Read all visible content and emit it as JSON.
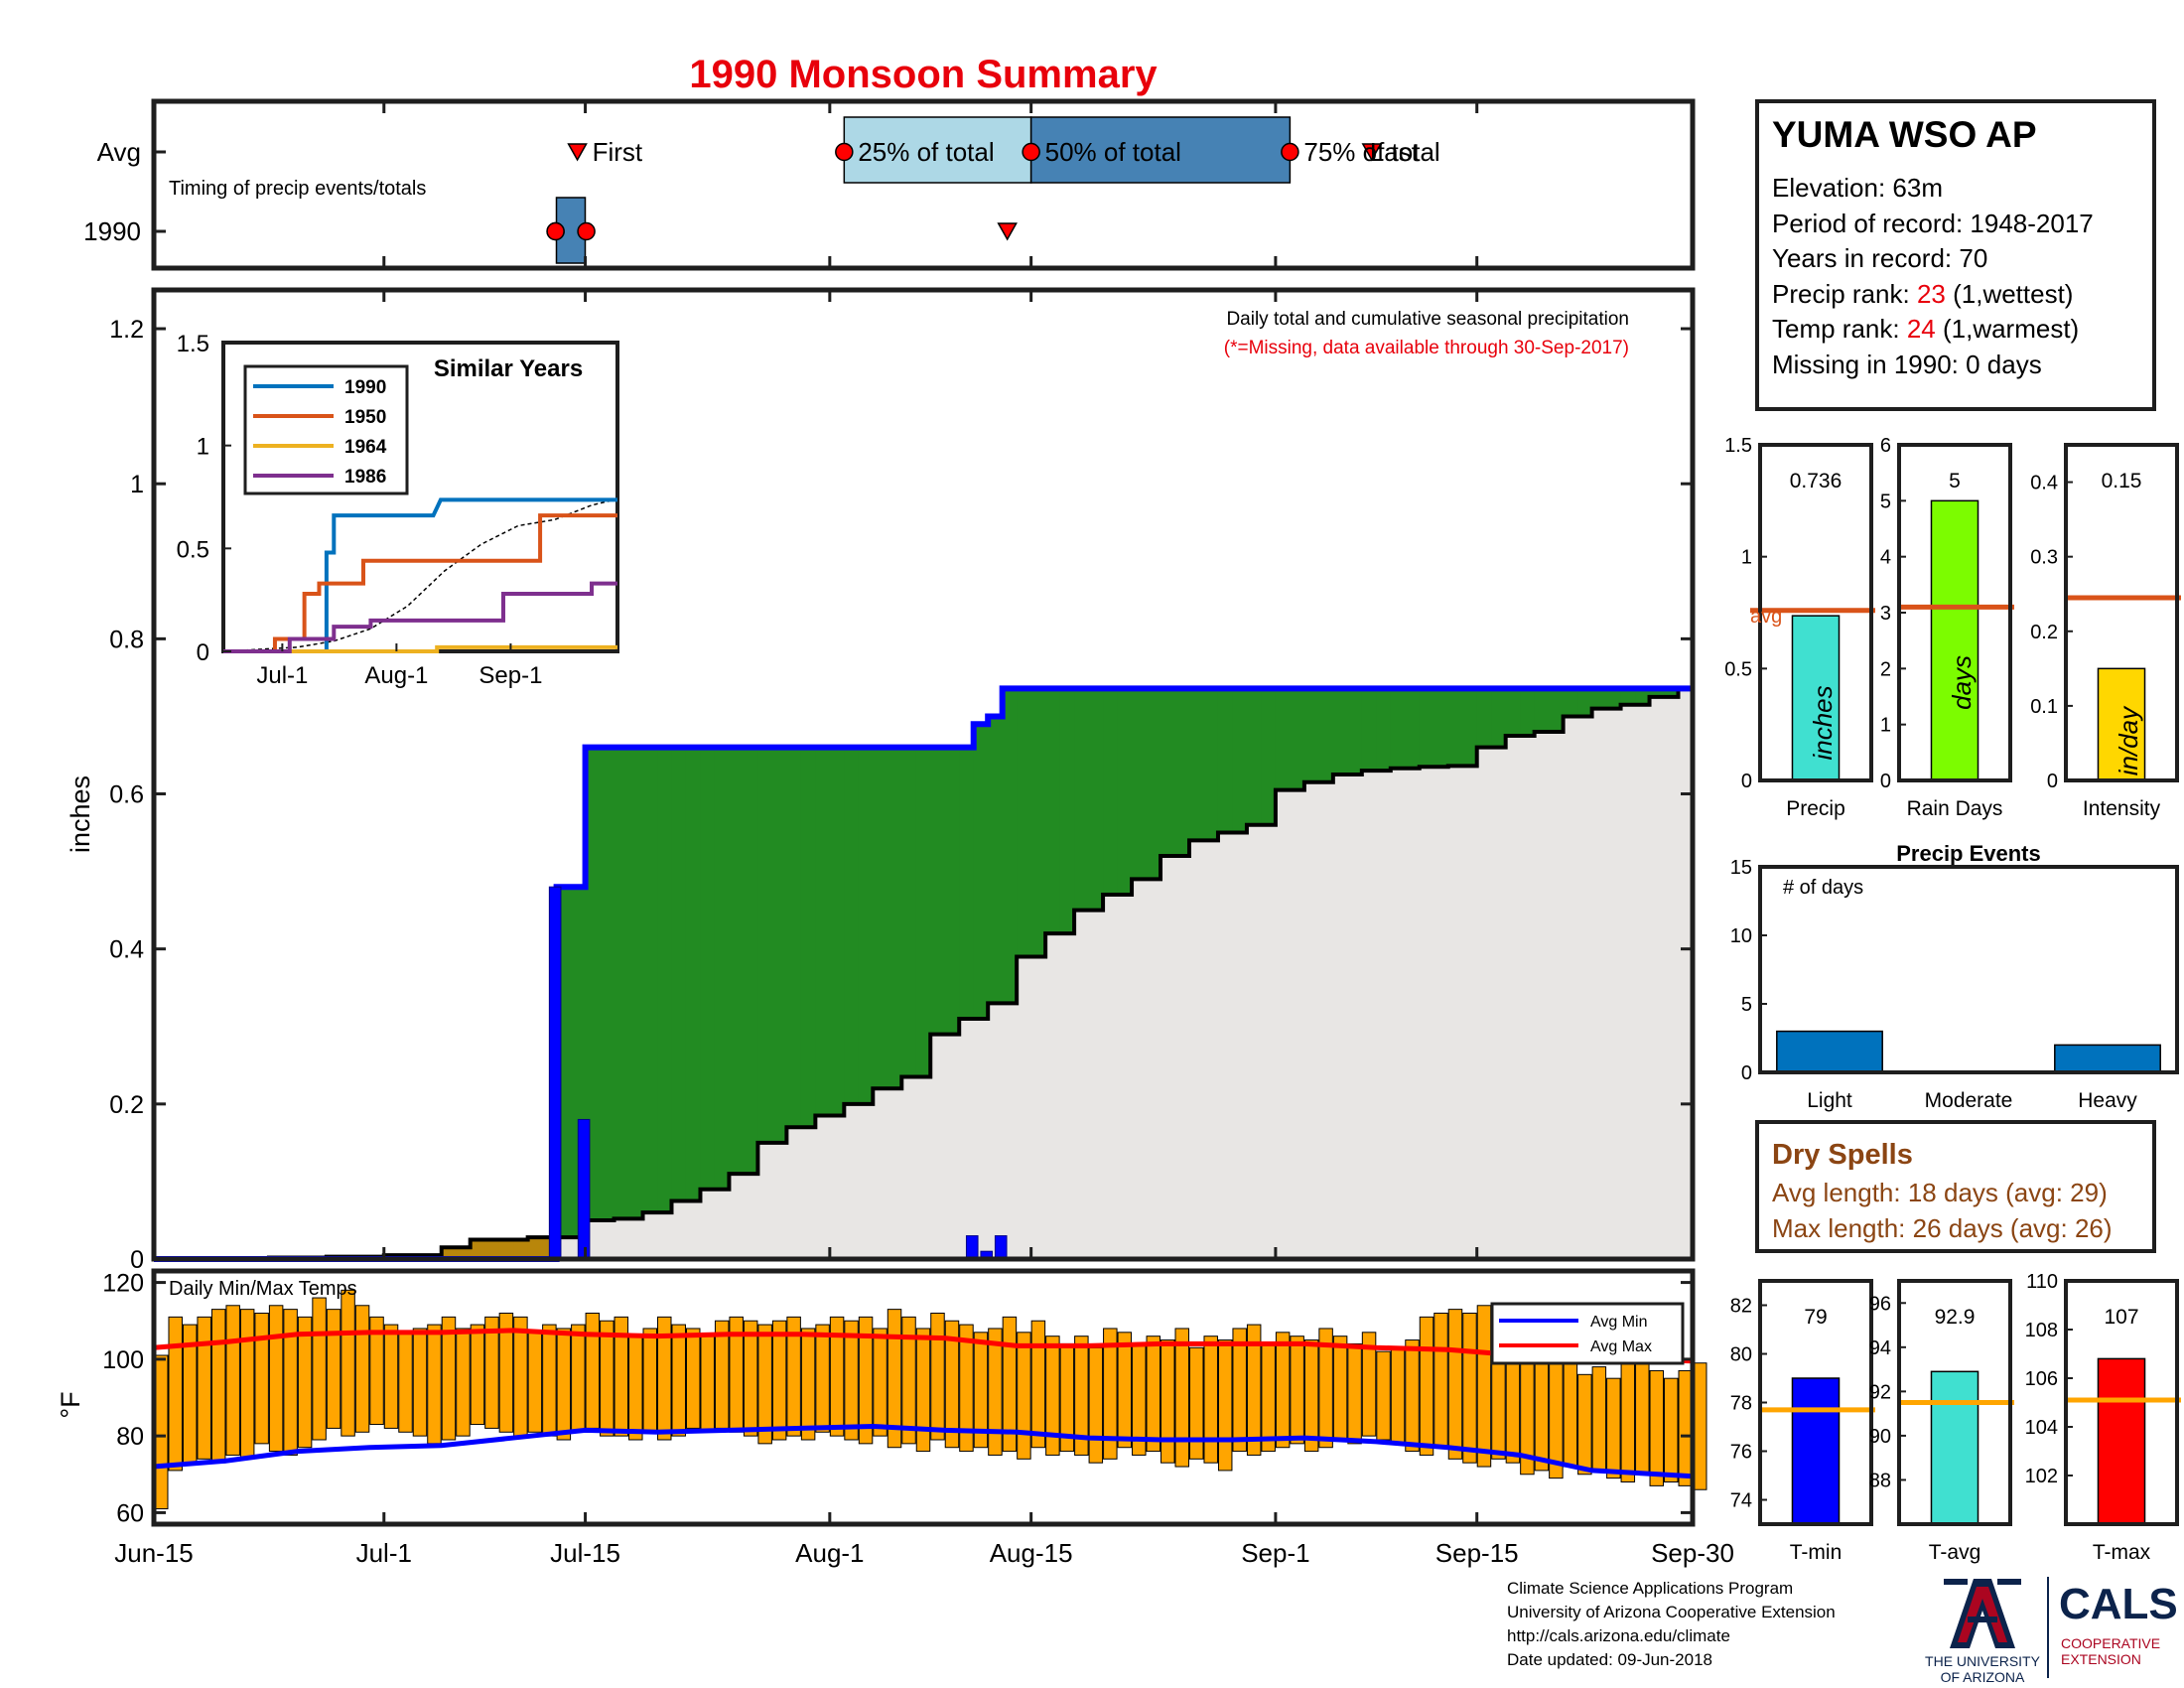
{
  "title": "1990 Monsoon Summary",
  "timing": {
    "caption": "Timing of precip events/totals",
    "row_labels": [
      "Avg",
      "1990"
    ],
    "avg_labels": [
      "First",
      "25% of total",
      "50% of total",
      "75% of total",
      "Last"
    ],
    "avg_days": {
      "first": 30,
      "p25": 48,
      "p50": 61,
      "p75": 79,
      "last": 84
    },
    "year_days": {
      "first": 28,
      "p25": 28,
      "p50": 28,
      "p75": 30,
      "last": 59
    }
  },
  "station": {
    "name": "YUMA WSO AP",
    "elevation": "Elevation: 63m",
    "period": "Period of record: 1948-2017",
    "years": "Years in record: 70",
    "precip_rank_prefix": "Precip rank: ",
    "precip_rank": "23",
    "precip_rank_suffix": " (1,wettest)",
    "temp_rank_prefix": "Temp rank: ",
    "temp_rank": "24",
    "temp_rank_suffix": " (1,warmest)",
    "missing": "Missing in 1990: 0 days"
  },
  "colors": {
    "title_red": "#e8000b",
    "daily_bar": "#0000ff",
    "cum_line": "#0000ff",
    "surplus_green": "#228b22",
    "deficit_brown": "#b8860b",
    "avg_gray": "#e8e6e4",
    "temp_bar": "#ffa500",
    "avg_min": "#0000ff",
    "avg_max": "#ff0000",
    "precip_bar": "#40e0d0",
    "raindays_bar": "#7cfc00",
    "intensity_bar": "#ffd700",
    "avg_line": "#d95319",
    "events_bar": "#0072bd",
    "tmin_bar": "#0000ff",
    "tavg_bar": "#40e0d0",
    "tmax_bar": "#ff0000",
    "temp_avg_line": "#ffa500",
    "dry_spell_text": "#8b4513",
    "ua_red": "#ab0520",
    "ua_blue": "#0c234b"
  },
  "chart_data": [
    {
      "type": "bar",
      "name": "Daily total and cumulative seasonal precipitation",
      "title": "Daily total and cumulative seasonal precipitation",
      "subtitle": "(*=Missing, data available through 30-Sep-2017)",
      "ylabel": "inches",
      "ylim": [
        0,
        1.25
      ],
      "yticks": [
        0,
        0.2,
        0.4,
        0.6,
        0.8,
        1,
        1.2
      ],
      "ytick_labels": [
        "0",
        "0.2",
        "0.4",
        "0.6",
        "0.8",
        "1",
        "1.2"
      ],
      "xtick_labels": [
        "Jun-15",
        "Jul-1",
        "Jul-15",
        "Aug-1",
        "Aug-15",
        "Sep-1",
        "Sep-15",
        "Sep-30"
      ],
      "xtick_days": [
        0,
        16,
        30,
        47,
        61,
        78,
        92,
        107
      ],
      "daily": [
        {
          "day": 28,
          "value": 0.48
        },
        {
          "day": 30,
          "value": 0.18
        },
        {
          "day": 57,
          "value": 0.03
        },
        {
          "day": 58,
          "value": 0.01
        },
        {
          "day": 59,
          "value": 0.03
        }
      ],
      "cumulative": [
        {
          "day": 0,
          "value": 0
        },
        {
          "day": 28,
          "value": 0.48
        },
        {
          "day": 30,
          "value": 0.66
        },
        {
          "day": 57,
          "value": 0.69
        },
        {
          "day": 58,
          "value": 0.7
        },
        {
          "day": 59,
          "value": 0.736
        },
        {
          "day": 107,
          "value": 0.736
        }
      ],
      "average_cumulative": [
        {
          "day": 0,
          "value": 0
        },
        {
          "day": 4,
          "value": 0.001
        },
        {
          "day": 8,
          "value": 0.002
        },
        {
          "day": 12,
          "value": 0.003
        },
        {
          "day": 16,
          "value": 0.005
        },
        {
          "day": 20,
          "value": 0.015
        },
        {
          "day": 22,
          "value": 0.025
        },
        {
          "day": 26,
          "value": 0.028
        },
        {
          "day": 30,
          "value": 0.05
        },
        {
          "day": 32,
          "value": 0.052
        },
        {
          "day": 34,
          "value": 0.06
        },
        {
          "day": 36,
          "value": 0.075
        },
        {
          "day": 38,
          "value": 0.09
        },
        {
          "day": 40,
          "value": 0.11
        },
        {
          "day": 42,
          "value": 0.15
        },
        {
          "day": 44,
          "value": 0.17
        },
        {
          "day": 46,
          "value": 0.185
        },
        {
          "day": 48,
          "value": 0.2
        },
        {
          "day": 50,
          "value": 0.22
        },
        {
          "day": 52,
          "value": 0.235
        },
        {
          "day": 54,
          "value": 0.29
        },
        {
          "day": 56,
          "value": 0.31
        },
        {
          "day": 58,
          "value": 0.33
        },
        {
          "day": 60,
          "value": 0.39
        },
        {
          "day": 62,
          "value": 0.42
        },
        {
          "day": 64,
          "value": 0.45
        },
        {
          "day": 66,
          "value": 0.47
        },
        {
          "day": 68,
          "value": 0.49
        },
        {
          "day": 70,
          "value": 0.52
        },
        {
          "day": 72,
          "value": 0.54
        },
        {
          "day": 74,
          "value": 0.55
        },
        {
          "day": 76,
          "value": 0.56
        },
        {
          "day": 78,
          "value": 0.605
        },
        {
          "day": 80,
          "value": 0.615
        },
        {
          "day": 82,
          "value": 0.625
        },
        {
          "day": 84,
          "value": 0.63
        },
        {
          "day": 86,
          "value": 0.633
        },
        {
          "day": 88,
          "value": 0.635
        },
        {
          "day": 90,
          "value": 0.636
        },
        {
          "day": 92,
          "value": 0.66
        },
        {
          "day": 94,
          "value": 0.675
        },
        {
          "day": 96,
          "value": 0.68
        },
        {
          "day": 98,
          "value": 0.7
        },
        {
          "day": 100,
          "value": 0.71
        },
        {
          "day": 102,
          "value": 0.715
        },
        {
          "day": 104,
          "value": 0.725
        },
        {
          "day": 106,
          "value": 0.735
        },
        {
          "day": 107,
          "value": 0.74
        }
      ]
    },
    {
      "type": "line",
      "name": "Similar Years",
      "title": "Similar Years",
      "ylim": [
        0,
        1.5
      ],
      "yticks": [
        0,
        0.5,
        1,
        1.5
      ],
      "ytick_labels": [
        "0",
        "0.5",
        "1",
        "1.5"
      ],
      "xtick_labels": [
        "Jul-1",
        "Aug-1",
        "Sep-1"
      ],
      "xtick_days": [
        16,
        47,
        78
      ],
      "x_days": [
        0,
        107
      ],
      "series": [
        {
          "name": "1990",
          "color": "#0072bd",
          "points": [
            [
              0,
              0
            ],
            [
              28,
              0
            ],
            [
              28,
              0.48
            ],
            [
              30,
              0.48
            ],
            [
              30,
              0.66
            ],
            [
              57,
              0.66
            ],
            [
              59,
              0.736
            ],
            [
              107,
              0.736
            ]
          ]
        },
        {
          "name": "1950",
          "color": "#d95319",
          "points": [
            [
              0,
              0
            ],
            [
              14,
              0
            ],
            [
              14,
              0.06
            ],
            [
              22,
              0.06
            ],
            [
              22,
              0.28
            ],
            [
              26,
              0.28
            ],
            [
              26,
              0.33
            ],
            [
              38,
              0.33
            ],
            [
              38,
              0.44
            ],
            [
              86,
              0.44
            ],
            [
              86,
              0.66
            ],
            [
              107,
              0.66
            ]
          ]
        },
        {
          "name": "1964",
          "color": "#edb120",
          "points": [
            [
              0,
              0
            ],
            [
              58,
              0
            ],
            [
              58,
              0.02
            ],
            [
              107,
              0.02
            ]
          ]
        },
        {
          "name": "1986",
          "color": "#7e2f8e",
          "points": [
            [
              0,
              0
            ],
            [
              18,
              0
            ],
            [
              18,
              0.06
            ],
            [
              30,
              0.06
            ],
            [
              30,
              0.12
            ],
            [
              40,
              0.12
            ],
            [
              40,
              0.15
            ],
            [
              76,
              0.15
            ],
            [
              76,
              0.28
            ],
            [
              100,
              0.28
            ],
            [
              100,
              0.33
            ],
            [
              107,
              0.33
            ]
          ]
        }
      ],
      "average": {
        "name": "avg",
        "points": [
          [
            0,
            0
          ],
          [
            20,
            0.02
          ],
          [
            30,
            0.05
          ],
          [
            40,
            0.11
          ],
          [
            50,
            0.22
          ],
          [
            60,
            0.39
          ],
          [
            70,
            0.52
          ],
          [
            80,
            0.61
          ],
          [
            90,
            0.64
          ],
          [
            100,
            0.71
          ],
          [
            107,
            0.74
          ]
        ]
      }
    },
    {
      "type": "bar",
      "name": "Daily Min/Max Temps",
      "title": "Daily Min/Max Temps",
      "ylabel": "°F",
      "ylim": [
        57,
        123
      ],
      "yticks": [
        60,
        80,
        100,
        120
      ],
      "ytick_labels": [
        "60",
        "80",
        "100",
        "120"
      ],
      "legend": [
        "Avg Min",
        "Avg Max"
      ],
      "legend_position": "top-right",
      "max": [
        101,
        111,
        109,
        111,
        113,
        114,
        113,
        112,
        114,
        113,
        111,
        116,
        113,
        118,
        114,
        111,
        109,
        107,
        108,
        109,
        111,
        108,
        109,
        111,
        112,
        111,
        107,
        109,
        108,
        109,
        112,
        110,
        111,
        106,
        108,
        111,
        109,
        108,
        106,
        110,
        111,
        110,
        109,
        110,
        111,
        108,
        109,
        111,
        110,
        111,
        108,
        113,
        111,
        108,
        112,
        110,
        109,
        107,
        108,
        111,
        107,
        110,
        106,
        104,
        106,
        103,
        108,
        107,
        104,
        106,
        105,
        108,
        103,
        106,
        105,
        108,
        109,
        104,
        107,
        106,
        105,
        108,
        106,
        104,
        107,
        102,
        103,
        105,
        111,
        112,
        113,
        112,
        114,
        111,
        109,
        104,
        106,
        101,
        99,
        96,
        98,
        95,
        99,
        101,
        97,
        95,
        97,
        99
      ],
      "min": [
        61,
        71,
        73,
        74,
        73,
        75,
        74,
        78,
        76,
        75,
        77,
        79,
        82,
        80,
        81,
        83,
        82,
        81,
        80,
        78,
        79,
        80,
        83,
        82,
        81,
        80,
        81,
        80,
        79,
        81,
        82,
        80,
        80,
        79,
        81,
        79,
        80,
        82,
        81,
        82,
        81,
        80,
        78,
        79,
        80,
        79,
        81,
        80,
        79,
        78,
        80,
        77,
        78,
        76,
        79,
        77,
        76,
        77,
        75,
        76,
        74,
        77,
        75,
        76,
        75,
        73,
        74,
        77,
        75,
        76,
        73,
        72,
        74,
        73,
        71,
        76,
        75,
        76,
        77,
        78,
        76,
        77,
        79,
        78,
        80,
        79,
        78,
        76,
        75,
        77,
        74,
        73,
        72,
        74,
        73,
        70,
        71,
        69,
        72,
        70,
        71,
        69,
        68,
        70,
        67,
        68,
        67,
        66
      ],
      "avg_min_points": [
        [
          0,
          72
        ],
        [
          5,
          73.5
        ],
        [
          10,
          76
        ],
        [
          15,
          77
        ],
        [
          20,
          77.5
        ],
        [
          25,
          79.5
        ],
        [
          30,
          81.5
        ],
        [
          35,
          81
        ],
        [
          40,
          81.5
        ],
        [
          45,
          82
        ],
        [
          50,
          82.5
        ],
        [
          55,
          81.5
        ],
        [
          60,
          81
        ],
        [
          65,
          79.5
        ],
        [
          70,
          79
        ],
        [
          75,
          79
        ],
        [
          80,
          79.5
        ],
        [
          85,
          78.5
        ],
        [
          90,
          77
        ],
        [
          95,
          75
        ],
        [
          100,
          71
        ],
        [
          107,
          69.5
        ]
      ],
      "avg_max_points": [
        [
          0,
          103
        ],
        [
          5,
          104.5
        ],
        [
          10,
          106.5
        ],
        [
          15,
          107
        ],
        [
          20,
          107
        ],
        [
          25,
          107.5
        ],
        [
          30,
          106.5
        ],
        [
          35,
          106
        ],
        [
          40,
          106.5
        ],
        [
          45,
          106.5
        ],
        [
          50,
          106
        ],
        [
          55,
          105.5
        ],
        [
          60,
          103.5
        ],
        [
          65,
          103.5
        ],
        [
          70,
          104
        ],
        [
          75,
          104
        ],
        [
          80,
          104
        ],
        [
          85,
          103
        ],
        [
          90,
          102.5
        ],
        [
          95,
          101
        ],
        [
          100,
          100.5
        ],
        [
          107,
          99.5
        ]
      ]
    },
    {
      "type": "bar",
      "name": "Precip",
      "categories": [
        "Precip"
      ],
      "values": [
        0.736
      ],
      "value_label": "0.736",
      "average": 0.76,
      "ylim": [
        0,
        1.5
      ],
      "yticks": [
        0,
        0.5,
        1,
        1.5
      ],
      "ytick_labels": [
        "0",
        "0.5",
        "1",
        "1.5"
      ],
      "unit": "inches",
      "avg_text": "avg"
    },
    {
      "type": "bar",
      "name": "Rain Days",
      "categories": [
        "Rain Days"
      ],
      "values": [
        5
      ],
      "value_label": "5",
      "average": 3.1,
      "ylim": [
        0,
        6
      ],
      "yticks": [
        0,
        1,
        2,
        3,
        4,
        5,
        6
      ],
      "ytick_labels": [
        "0",
        "1",
        "2",
        "3",
        "4",
        "5",
        "6"
      ],
      "unit": "days"
    },
    {
      "type": "bar",
      "name": "Intensity",
      "categories": [
        "Intensity"
      ],
      "values": [
        0.15
      ],
      "value_label": "0.15",
      "average": 0.245,
      "ylim": [
        0,
        0.45
      ],
      "yticks": [
        0,
        0.1,
        0.2,
        0.3,
        0.4
      ],
      "ytick_labels": [
        "0",
        "0.1",
        "0.2",
        "0.3",
        "0.4"
      ],
      "unit": "in/day"
    },
    {
      "type": "bar",
      "name": "Precip Events",
      "title": "Precip Events",
      "ylabel": "# of days",
      "categories": [
        "Light",
        "Moderate",
        "Heavy"
      ],
      "values": [
        3,
        0,
        2
      ],
      "ylim": [
        0,
        15
      ],
      "yticks": [
        0,
        5,
        10,
        15
      ],
      "ytick_labels": [
        "0",
        "5",
        "10",
        "15"
      ]
    },
    {
      "type": "bar",
      "name": "T-min",
      "categories": [
        "T-min"
      ],
      "values": [
        79
      ],
      "value_label": "79",
      "average": 77.7,
      "ylim": [
        73,
        83
      ],
      "yticks": [
        74,
        76,
        78,
        80,
        82
      ],
      "ytick_labels": [
        "74",
        "76",
        "78",
        "80",
        "82"
      ]
    },
    {
      "type": "bar",
      "name": "T-avg",
      "categories": [
        "T-avg"
      ],
      "values": [
        92.9
      ],
      "value_label": "92.9",
      "average": 91.5,
      "ylim": [
        86,
        97
      ],
      "yticks": [
        88,
        90,
        92,
        94,
        96
      ],
      "ytick_labels": [
        "88",
        "90",
        "92",
        "94",
        "96"
      ]
    },
    {
      "type": "bar",
      "name": "T-max",
      "categories": [
        "T-max"
      ],
      "values": [
        106.8
      ],
      "value_label": "107",
      "average": 105.1,
      "ylim": [
        100,
        110
      ],
      "yticks": [
        102,
        104,
        106,
        108,
        110
      ],
      "ytick_labels": [
        "102",
        "104",
        "106",
        "108",
        "110"
      ]
    }
  ],
  "dry_spells": {
    "title": "Dry Spells",
    "avg": "Avg length: 18 days (avg: 29)",
    "max": "Max length: 26 days (avg: 26)"
  },
  "footer": {
    "line1": "Climate Science Applications Program",
    "line2": "University of Arizona Cooperative Extension",
    "line3": "http://cals.arizona.edu/climate",
    "line4": " Date updated: 09-Jun-2018"
  },
  "logos": {
    "ua_line1": "THE UNIVERSITY",
    "ua_line2": "OF ARIZONA",
    "cals": "CALS",
    "cals_sub1": "COOPERATIVE",
    "cals_sub2": "EXTENSION"
  }
}
